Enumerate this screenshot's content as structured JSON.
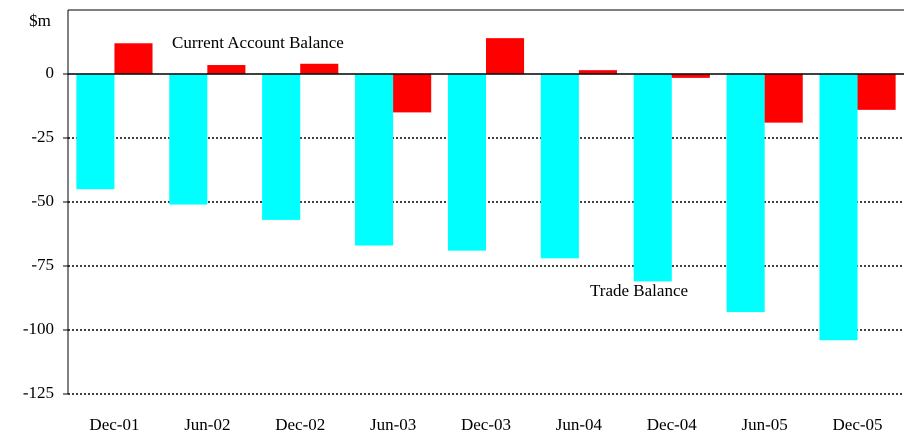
{
  "chart_data": {
    "type": "bar",
    "ylabel": "$m",
    "categories": [
      "Dec-01",
      "Jun-02",
      "Dec-02",
      "Jun-03",
      "Dec-03",
      "Jun-04",
      "Dec-04",
      "Jun-05",
      "Dec-05"
    ],
    "series": [
      {
        "name": "Trade Balance",
        "color": "#00ffff",
        "values": [
          -45,
          -51,
          -57,
          -67,
          -69,
          -72,
          -81,
          -93,
          -104
        ]
      },
      {
        "name": "Current Account Balance",
        "color": "#ff0000",
        "values": [
          12,
          3.5,
          4,
          -15,
          14,
          1.5,
          -1.5,
          -19,
          -14
        ]
      }
    ],
    "ylim": [
      -125,
      25
    ],
    "yticks": [
      0,
      -25,
      -50,
      -75,
      -100,
      -125
    ],
    "grid": true
  }
}
